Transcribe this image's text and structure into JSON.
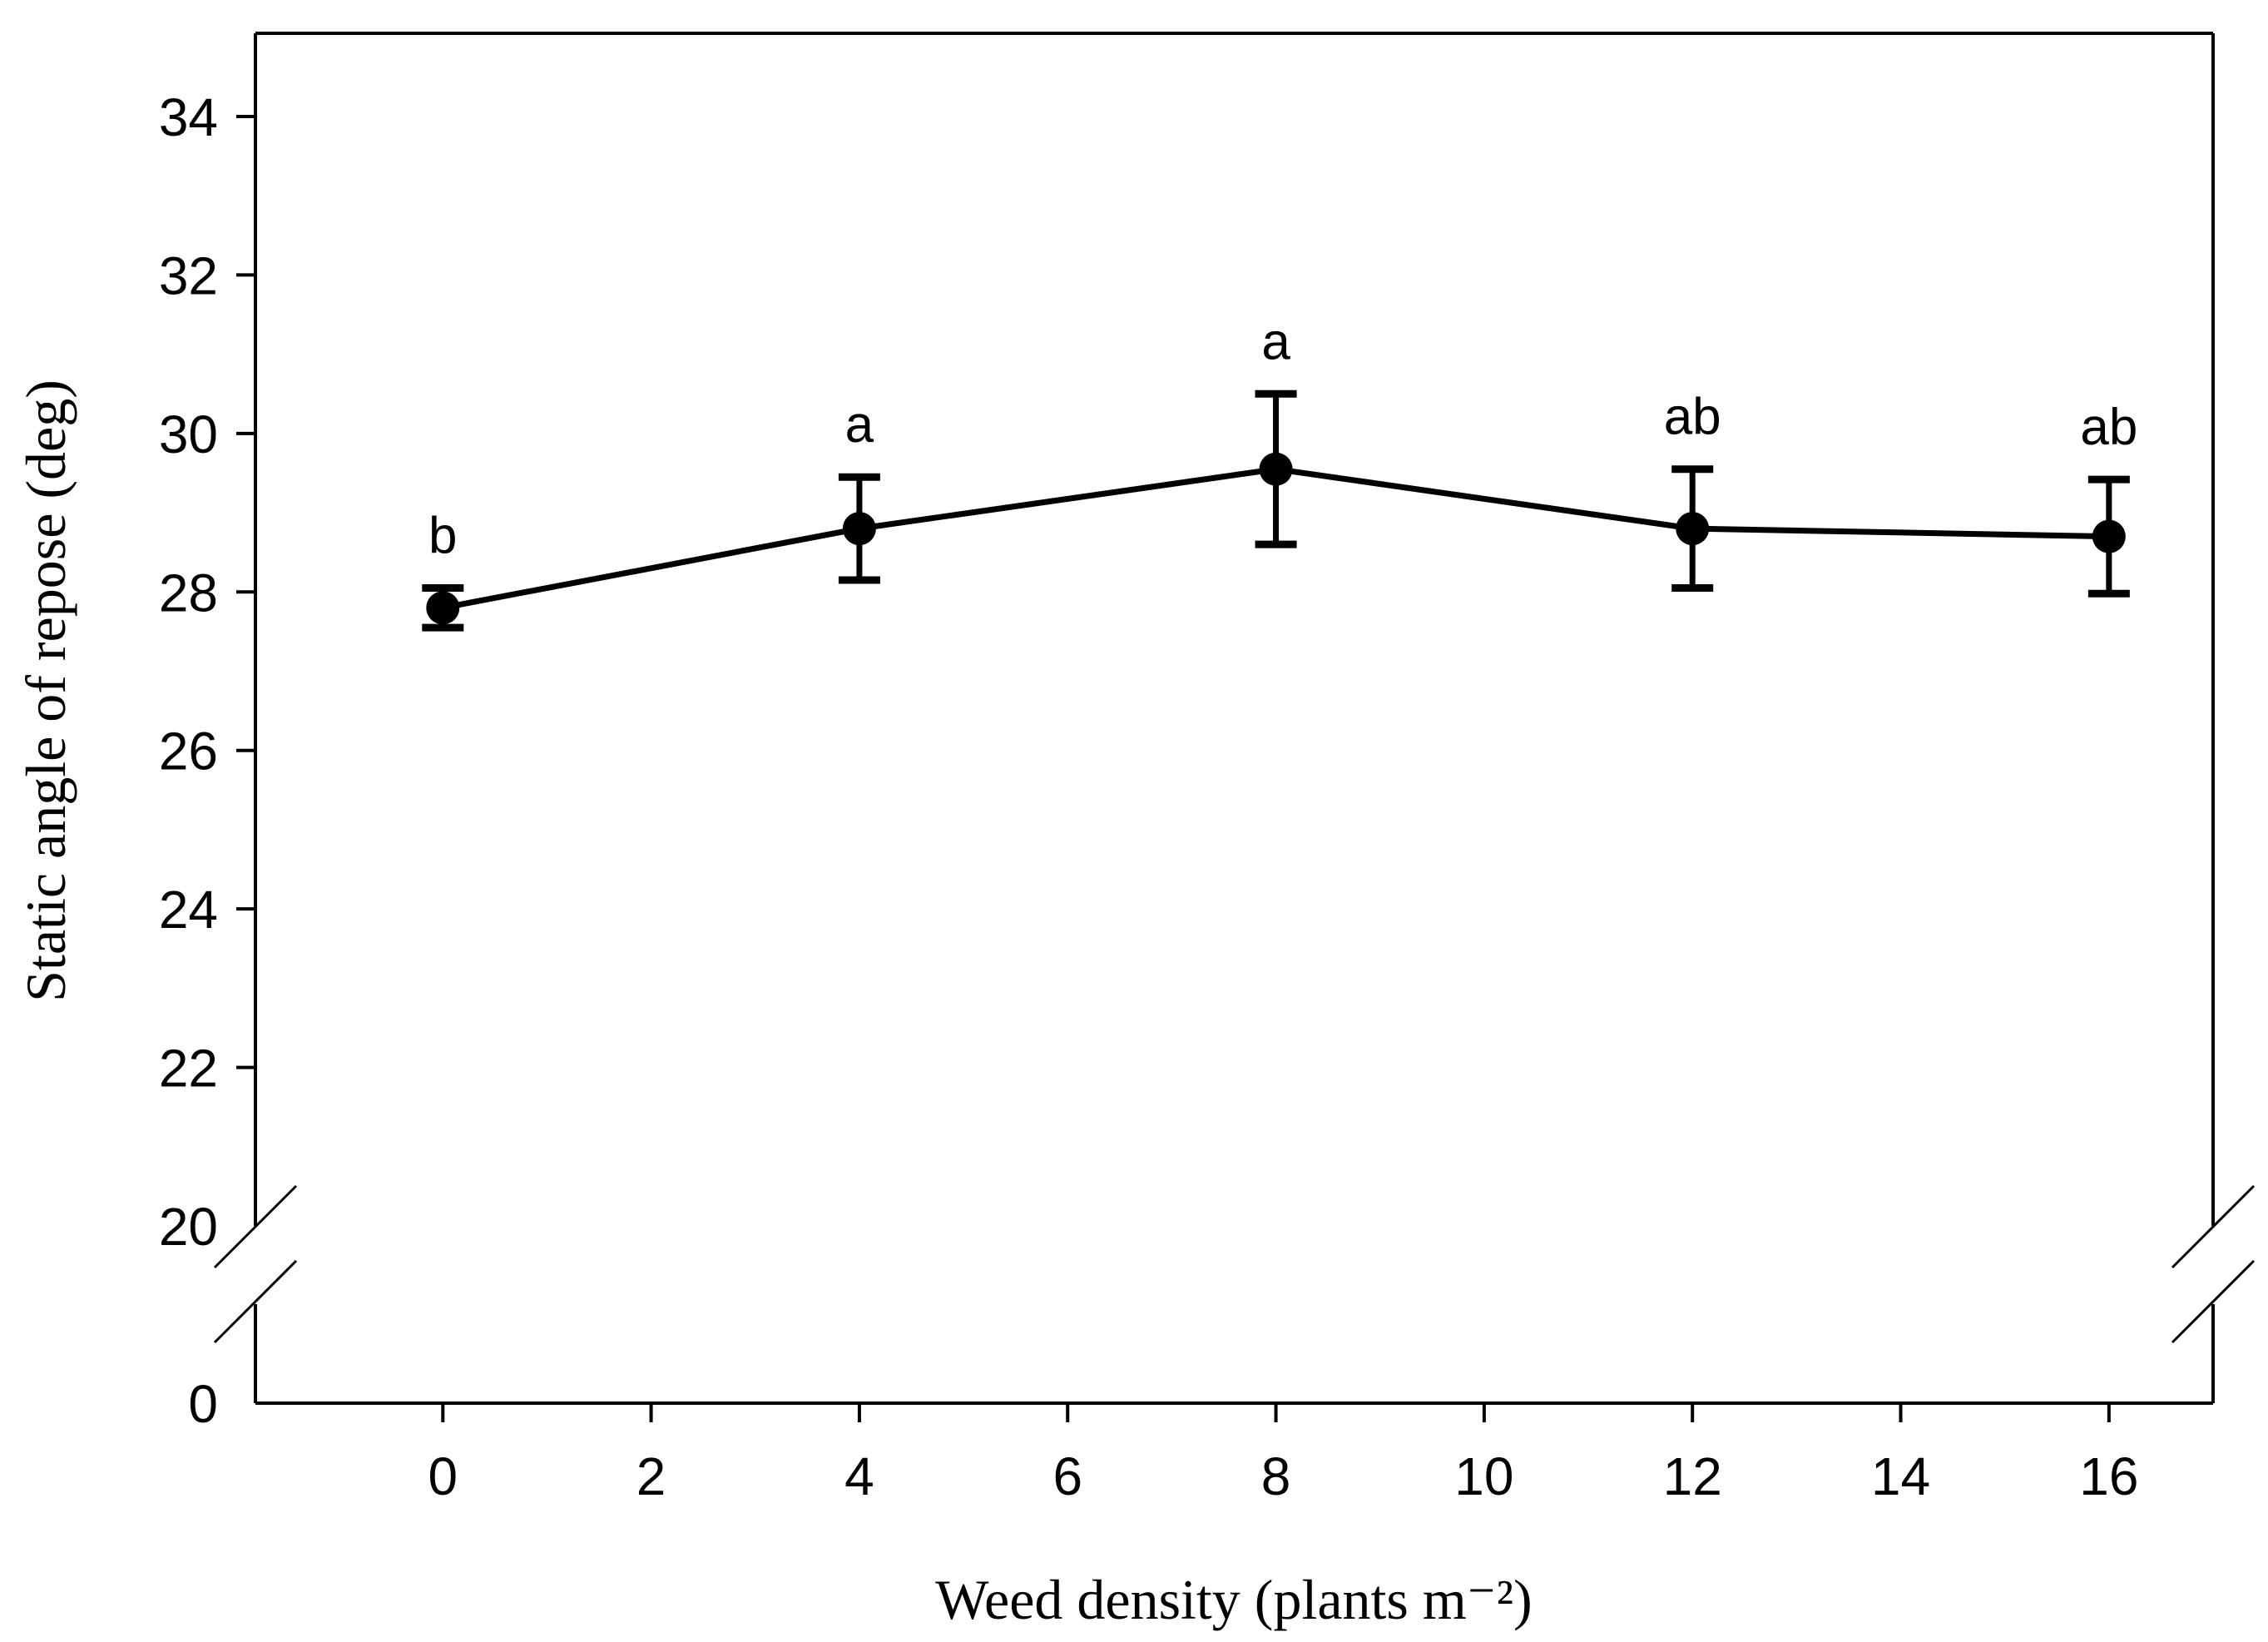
{
  "page": {
    "background_color": "#ffffff",
    "ink_color": "#000000"
  },
  "chart_data": {
    "type": "line",
    "title": "",
    "xlabel": "Weed density (plants m⁻²)",
    "ylabel": "Static angle of repose (deg)",
    "x": [
      0,
      4,
      8,
      12,
      16
    ],
    "series": [
      {
        "name": "static-angle-of-repose",
        "marker": "filled-circle",
        "color": "#000000",
        "values": [
          27.8,
          28.8,
          29.55,
          28.8,
          28.7
        ]
      }
    ],
    "error_bars": {
      "type": "symmetric",
      "values": [
        0.25,
        0.65,
        0.95,
        0.75,
        0.72
      ]
    },
    "sig_letters": [
      "b",
      "a",
      "a",
      "ab",
      "ab"
    ],
    "x_ticks": {
      "values": [
        0,
        2,
        4,
        6,
        8,
        10,
        12,
        14,
        16
      ],
      "labels": [
        "0",
        "2",
        "4",
        "6",
        "8",
        "10",
        "12",
        "14",
        "16"
      ]
    },
    "y_axis": {
      "upper_tick_values": [
        34,
        32,
        30,
        28,
        26,
        24,
        22
      ],
      "upper_tick_labels": [
        "34",
        "32",
        "30",
        "28",
        "26",
        "24",
        "22"
      ],
      "break_value": 20,
      "break_label": "20",
      "origin_value": 0,
      "origin_label": "0",
      "axis_break": true,
      "upper_segment_range": [
        20,
        35.05
      ]
    },
    "xlim": [
      -1.8,
      17.0
    ],
    "grid": false,
    "legend": null,
    "background_color": "#ffffff",
    "ink_color": "#000000"
  }
}
